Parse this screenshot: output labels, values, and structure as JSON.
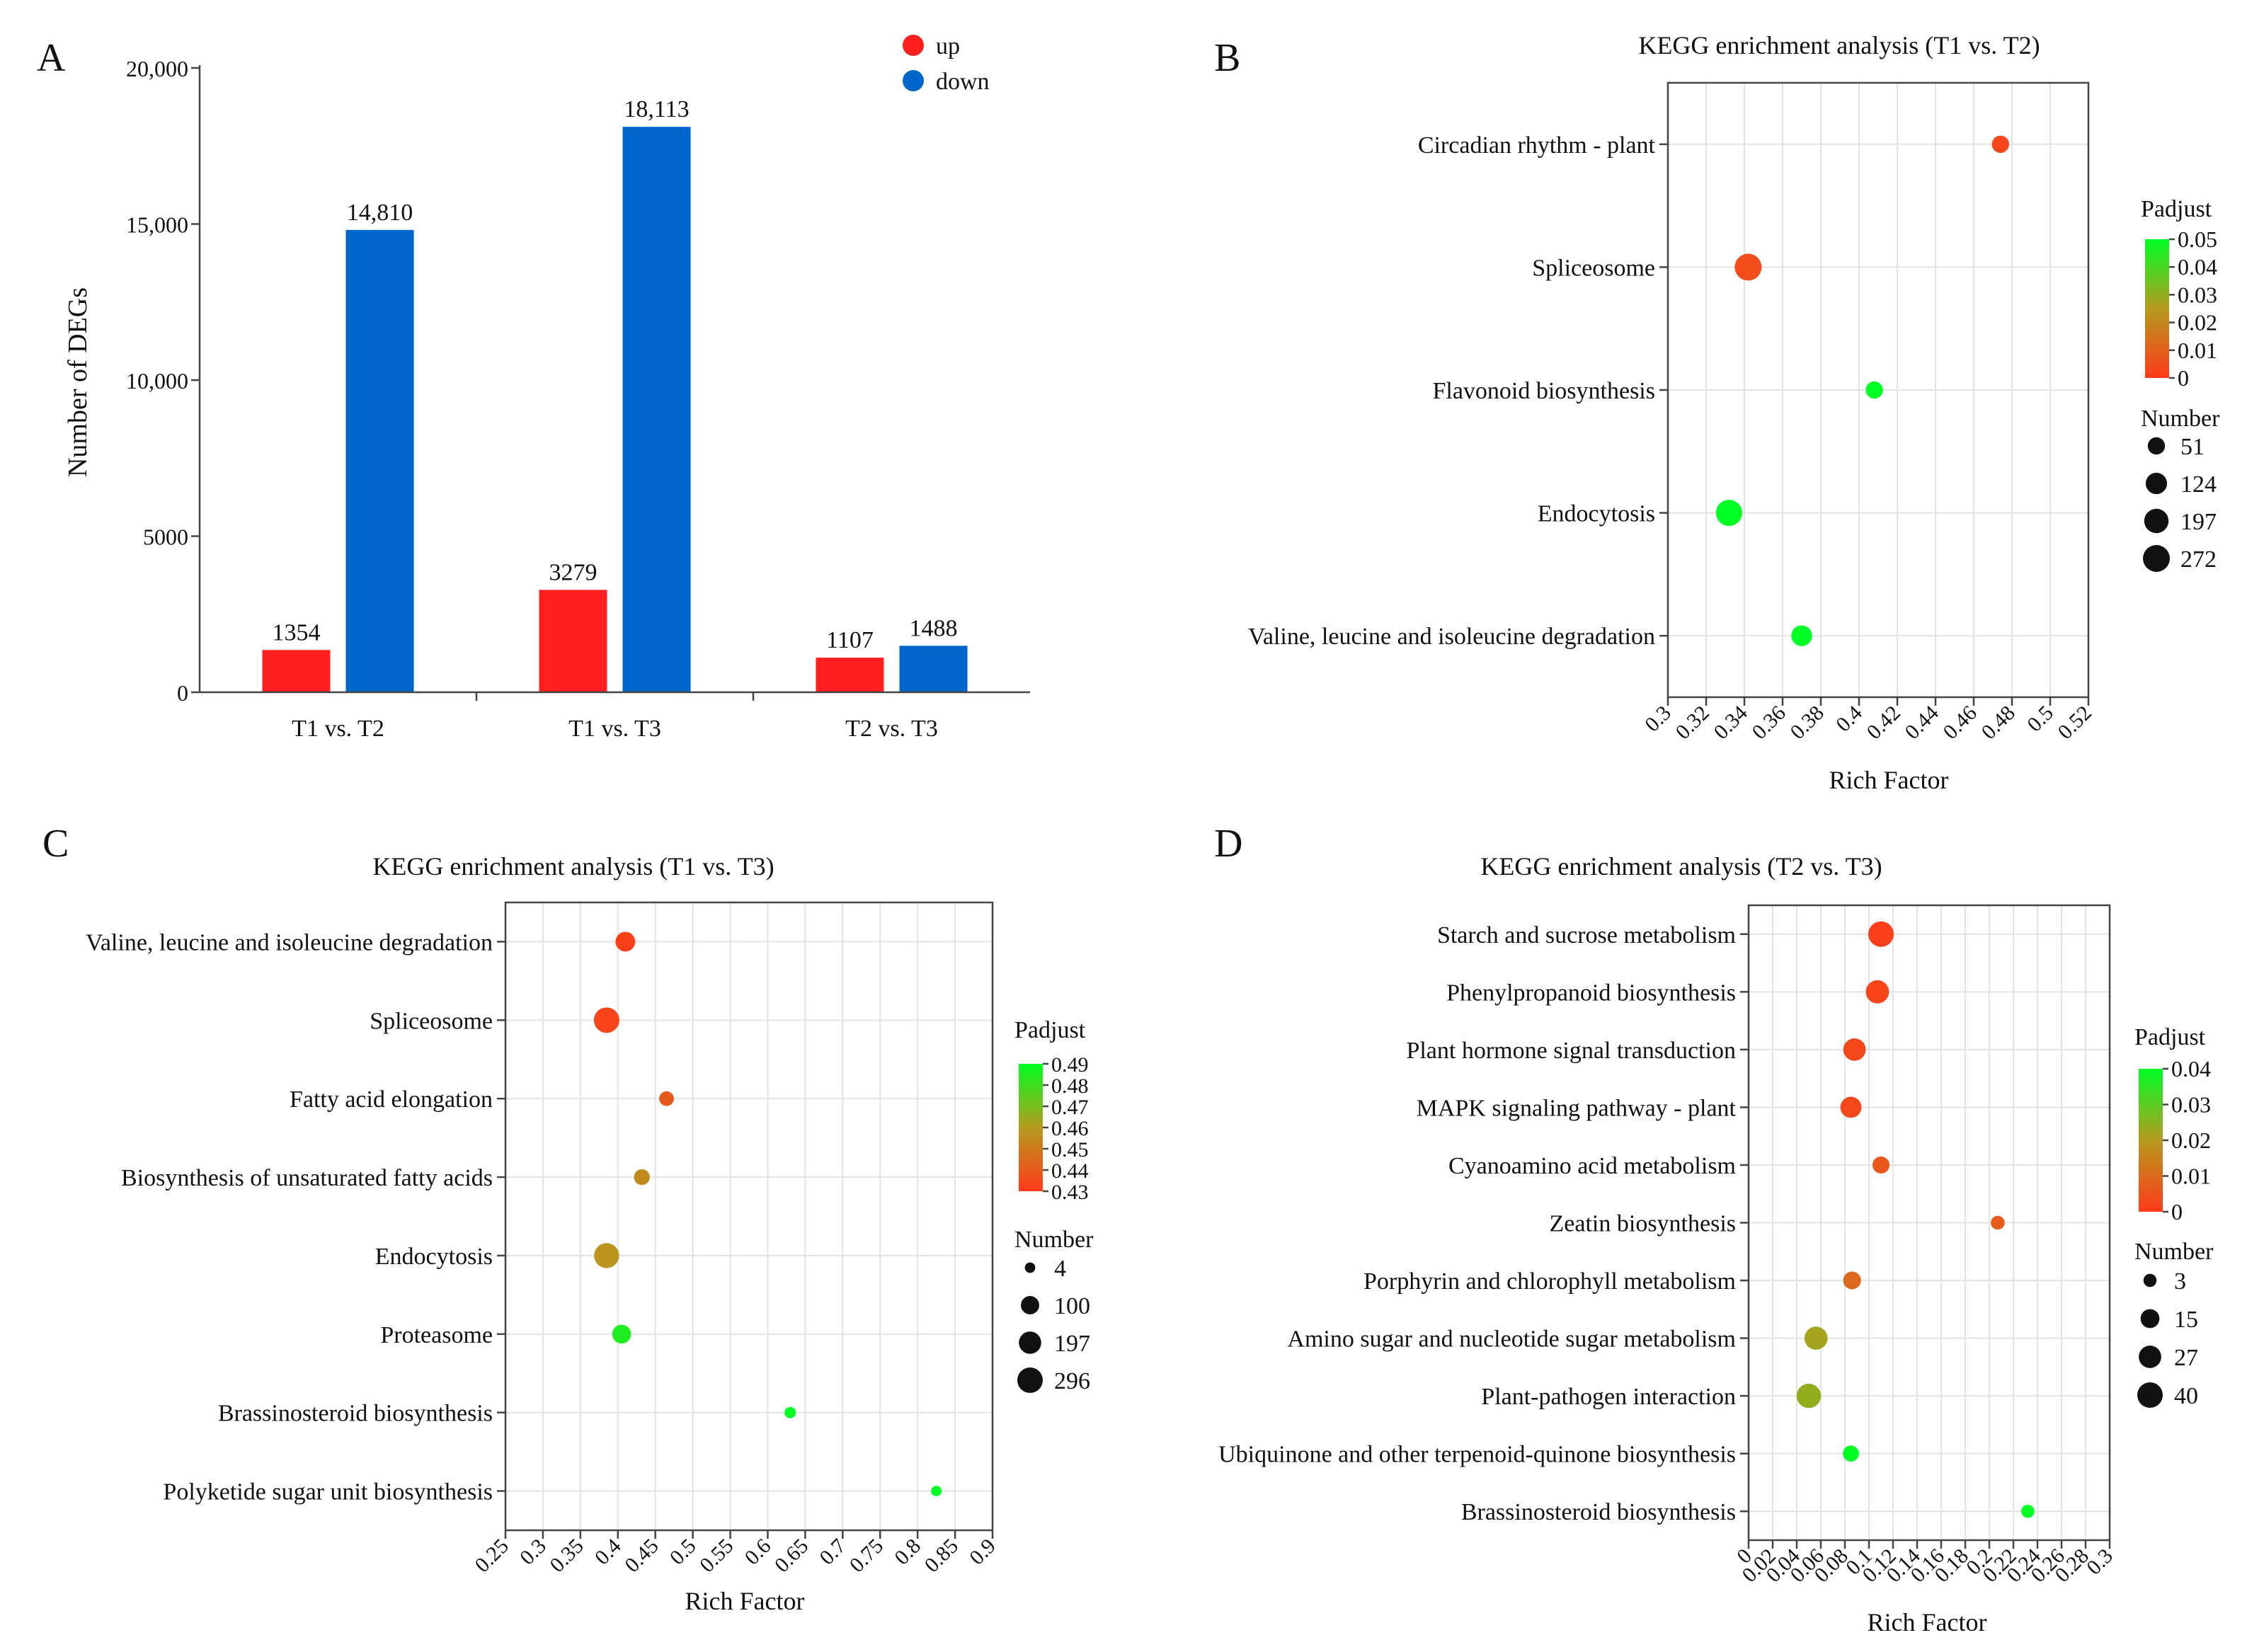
{
  "chart_data": [
    {
      "panel": "A",
      "type": "bar",
      "title": "",
      "ylabel": "Number  of  DEGs",
      "xlabel": "",
      "ylim": [
        0,
        20000
      ],
      "yticks": [
        0,
        5000,
        10000,
        15000,
        20000
      ],
      "ytick_labels": [
        "0",
        "5000",
        "10,000",
        "15,000",
        "20,000"
      ],
      "categories": [
        "T1 vs. T2",
        "T1 vs. T3",
        "T2 vs. T3"
      ],
      "series": [
        {
          "name": "up",
          "color": "#ff1f1f",
          "values": [
            1354,
            3279,
            1107
          ],
          "labels": [
            "1354",
            "3279",
            "1107"
          ]
        },
        {
          "name": "down",
          "color": "#0066cc",
          "values": [
            14810,
            18113,
            1488
          ],
          "labels": [
            "14,810",
            "18,113",
            "1488"
          ]
        }
      ],
      "legend": "top-right"
    },
    {
      "panel": "B",
      "type": "scatter",
      "title": "KEGG enrichment analysis (T1 vs. T2)",
      "xlabel": "Rich Factor",
      "xlim": [
        0.3,
        0.52
      ],
      "xticks": [
        0.3,
        0.32,
        0.34,
        0.36,
        0.38,
        0.4,
        0.42,
        0.44,
        0.46,
        0.48,
        0.5,
        0.52
      ],
      "xtick_labels": [
        "0.3",
        "0.32",
        "0.34",
        "0.36",
        "0.38",
        "0.4",
        "0.42",
        "0.44",
        "0.46",
        "0.48",
        "0.5",
        "0.52"
      ],
      "terms": [
        "Circadian rhythm - plant",
        "Spliceosome",
        "Flavonoid biosynthesis",
        "Endocytosis",
        "Valine, leucine and isoleucine degradation"
      ],
      "points": [
        {
          "term": "Circadian rhythm - plant",
          "rich_factor": 0.474,
          "number": 51,
          "padjust": 0.003
        },
        {
          "term": "Spliceosome",
          "rich_factor": 0.342,
          "number": 272,
          "padjust": 0.005
        },
        {
          "term": "Flavonoid biosynthesis",
          "rich_factor": 0.408,
          "number": 51,
          "padjust": 0.05
        },
        {
          "term": "Endocytosis",
          "rich_factor": 0.332,
          "number": 250,
          "padjust": 0.05
        },
        {
          "term": "Valine, leucine and isoleucine degradation",
          "rich_factor": 0.37,
          "number": 110,
          "padjust": 0.05
        }
      ],
      "color_legend": {
        "title": "Padjust",
        "min": 0,
        "max": 0.05,
        "ticks": [
          "0.05",
          "0.04",
          "0.03",
          "0.02",
          "0.01",
          "0"
        ]
      },
      "size_legend": {
        "title": "Number",
        "values": [
          51,
          124,
          197,
          272
        ],
        "labels": [
          "51",
          "124",
          "197",
          "272"
        ]
      }
    },
    {
      "panel": "C",
      "type": "scatter",
      "title": "KEGG enrichment analysis (T1 vs. T3)",
      "xlabel": "Rich Factor",
      "xlim": [
        0.25,
        0.9
      ],
      "xticks": [
        0.25,
        0.3,
        0.35,
        0.4,
        0.45,
        0.5,
        0.55,
        0.6,
        0.65,
        0.7,
        0.75,
        0.8,
        0.85,
        0.9
      ],
      "xtick_labels": [
        "0.25",
        "0.3",
        "0.35",
        "0.4",
        "0.45",
        "0.5",
        "0.55",
        "0.6",
        "0.65",
        "0.7",
        "0.75",
        "0.8",
        "0.85",
        "0.9"
      ],
      "terms": [
        "Valine, leucine and isoleucine degradation",
        "Spliceosome",
        "Fatty acid elongation",
        "Biosynthesis of unsaturated fatty acids",
        "Endocytosis",
        "Proteasome",
        "Brassinosteroid biosynthesis",
        "Polyketide sugar unit biosynthesis"
      ],
      "points": [
        {
          "term": "Valine, leucine and isoleucine degradation",
          "rich_factor": 0.41,
          "number": 130,
          "padjust": 0.432
        },
        {
          "term": "Spliceosome",
          "rich_factor": 0.385,
          "number": 296,
          "padjust": 0.433
        },
        {
          "term": "Fatty acid elongation",
          "rich_factor": 0.465,
          "number": 40,
          "padjust": 0.44
        },
        {
          "term": "Biosynthesis of unsaturated fatty acids",
          "rich_factor": 0.432,
          "number": 55,
          "padjust": 0.455
        },
        {
          "term": "Endocytosis",
          "rich_factor": 0.385,
          "number": 280,
          "padjust": 0.458
        },
        {
          "term": "Proteasome",
          "rich_factor": 0.405,
          "number": 110,
          "padjust": 0.485
        },
        {
          "term": "Brassinosteroid biosynthesis",
          "rich_factor": 0.63,
          "number": 8,
          "padjust": 0.49
        },
        {
          "term": "Polyketide sugar unit biosynthesis",
          "rich_factor": 0.825,
          "number": 4,
          "padjust": 0.49
        }
      ],
      "color_legend": {
        "title": "Padjust",
        "min": 0.43,
        "max": 0.49,
        "ticks": [
          "0.49",
          "0.48",
          "0.47",
          "0.46",
          "0.45",
          "0.44",
          "0.43"
        ]
      },
      "size_legend": {
        "title": "Number",
        "values": [
          4,
          100,
          197,
          296
        ],
        "labels": [
          "4",
          "100",
          "197",
          "296"
        ]
      }
    },
    {
      "panel": "D",
      "type": "scatter",
      "title": "KEGG enrichment analysis (T2 vs. T3)",
      "xlabel": "Rich Factor",
      "xlim": [
        0,
        0.3
      ],
      "xticks": [
        0,
        0.02,
        0.04,
        0.06,
        0.08,
        0.1,
        0.12,
        0.14,
        0.16,
        0.18,
        0.2,
        0.22,
        0.24,
        0.26,
        0.28,
        0.3
      ],
      "xtick_labels": [
        "0",
        "0.02",
        "0.04",
        "0.06",
        "0.08",
        "0.1",
        "0.12",
        "0.14",
        "0.16",
        "0.18",
        "0.2",
        "0.22",
        "0.24",
        "0.26",
        "0.28",
        "0.3"
      ],
      "terms": [
        "Starch and sucrose metabolism",
        "Phenylpropanoid biosynthesis",
        "Plant hormone signal transduction",
        "MAPK signaling pathway - plant",
        "Cyanoamino acid metabolism",
        "Zeatin biosynthesis",
        "Porphyrin and chlorophyll metabolism",
        "Amino sugar and nucleotide sugar metabolism",
        "Plant-pathogen interaction",
        "Ubiquinone and other terpenoid-quinone biosynthesis",
        "Brassinosteroid biosynthesis"
      ],
      "points": [
        {
          "term": "Starch and sucrose metabolism",
          "rich_factor": 0.11,
          "number": 40,
          "padjust": 0.001
        },
        {
          "term": "Phenylpropanoid biosynthesis",
          "rich_factor": 0.107,
          "number": 30,
          "padjust": 0.002
        },
        {
          "term": "Plant hormone signal transduction",
          "rich_factor": 0.088,
          "number": 27,
          "padjust": 0.003
        },
        {
          "term": "MAPK signaling pathway - plant",
          "rich_factor": 0.085,
          "number": 22,
          "padjust": 0.003
        },
        {
          "term": "Cyanoamino acid metabolism",
          "rich_factor": 0.11,
          "number": 10,
          "padjust": 0.006
        },
        {
          "term": "Zeatin biosynthesis",
          "rich_factor": 0.207,
          "number": 4,
          "padjust": 0.007
        },
        {
          "term": "Porphyrin and chlorophyll metabolism",
          "rich_factor": 0.086,
          "number": 12,
          "padjust": 0.01
        },
        {
          "term": "Amino sugar and nucleotide sugar metabolism",
          "rich_factor": 0.056,
          "number": 30,
          "padjust": 0.022
        },
        {
          "term": "Plant-pathogen interaction",
          "rich_factor": 0.05,
          "number": 35,
          "padjust": 0.024
        },
        {
          "term": "Ubiquinone and other terpenoid-quinone biosynthesis",
          "rich_factor": 0.085,
          "number": 8,
          "padjust": 0.04
        },
        {
          "term": "Brassinosteroid biosynthesis",
          "rich_factor": 0.232,
          "number": 3,
          "padjust": 0.04
        }
      ],
      "color_legend": {
        "title": "Padjust",
        "min": 0,
        "max": 0.04,
        "ticks": [
          "0.04",
          "0.03",
          "0.02",
          "0.01",
          "0"
        ]
      },
      "size_legend": {
        "title": "Number",
        "values": [
          3,
          15,
          27,
          40
        ],
        "labels": [
          "3",
          "15",
          "27",
          "40"
        ]
      }
    }
  ]
}
